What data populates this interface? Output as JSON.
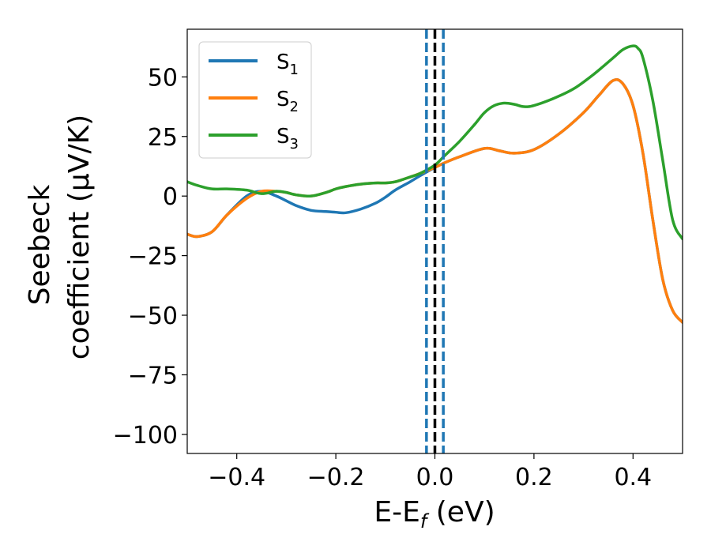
{
  "chart_data": {
    "type": "line",
    "title": "",
    "xlabel": {
      "main": "E-E",
      "sub": "f",
      "unit": " (eV)"
    },
    "ylabel": {
      "line1": "Seebeck",
      "line2": "coefficient  (μV/K)"
    },
    "xlim": [
      -0.5,
      0.5
    ],
    "ylim": [
      -108,
      70
    ],
    "x_ticks": [
      -0.4,
      -0.2,
      0.0,
      0.2,
      0.4
    ],
    "x_tick_labels": [
      "−0.4",
      "−0.2",
      "0.0",
      "0.2",
      "0.4"
    ],
    "y_ticks": [
      50,
      25,
      0,
      -25,
      -50,
      -75,
      -100
    ],
    "y_tick_labels": [
      "50",
      "25",
      "0",
      "−25",
      "−50",
      "−75",
      "−100"
    ],
    "grid": false,
    "legend_placement": "top-left",
    "vlines": [
      {
        "x": 0.0,
        "color": "#000000",
        "style": "dashed"
      },
      {
        "x": -0.017,
        "color": "#1f77b4",
        "style": "dashed"
      },
      {
        "x": 0.017,
        "color": "#1f77b4",
        "style": "dashed"
      }
    ],
    "series": [
      {
        "name": "S",
        "sub": "1",
        "color": "#1f77b4",
        "x": [
          -0.5,
          -0.48,
          -0.45,
          -0.42,
          -0.38,
          -0.35,
          -0.32,
          -0.3,
          -0.28,
          -0.25,
          -0.22,
          -0.2,
          -0.18,
          -0.15,
          -0.12,
          -0.1,
          -0.08,
          -0.05,
          -0.03,
          0.0,
          0.02,
          0.05,
          0.1,
          0.13,
          0.16,
          0.2,
          0.25,
          0.3,
          0.33,
          0.36,
          0.38,
          0.4,
          0.42,
          0.44,
          0.46,
          0.48,
          0.5
        ],
        "values": [
          -16,
          -17,
          -15,
          -8,
          0,
          2,
          0,
          -2,
          -4,
          -6,
          -6.5,
          -6.8,
          -7,
          -5.5,
          -3,
          -0.5,
          2.5,
          6,
          8.5,
          12,
          14,
          16.5,
          20,
          19,
          18,
          19.5,
          26,
          35,
          42,
          48.5,
          47,
          38,
          18,
          -10,
          -35,
          -48,
          -53
        ]
      },
      {
        "name": "S",
        "sub": "2",
        "color": "#ff7f0e",
        "x": [
          -0.5,
          -0.48,
          -0.45,
          -0.42,
          -0.38,
          -0.35,
          -0.32,
          -0.3,
          -0.28,
          -0.25,
          -0.22,
          -0.2,
          -0.18,
          -0.15,
          -0.12,
          -0.1,
          -0.08,
          -0.05,
          -0.03,
          0.0,
          0.02,
          0.05,
          0.1,
          0.13,
          0.16,
          0.2,
          0.25,
          0.3,
          0.33,
          0.36,
          0.38,
          0.4,
          0.42,
          0.44,
          0.46,
          0.48,
          0.5
        ],
        "values": [
          -16,
          -17,
          -15,
          -8,
          -1,
          2,
          2,
          1.5,
          0.5,
          0,
          1.5,
          3,
          4,
          5,
          5.5,
          5.5,
          6,
          8,
          9.5,
          12,
          14,
          16.5,
          20,
          19,
          18,
          19.5,
          26,
          35,
          42,
          48.5,
          47,
          38,
          18,
          -10,
          -35,
          -48,
          -53
        ]
      },
      {
        "name": "S",
        "sub": "3",
        "color": "#2ca02c",
        "x": [
          -0.5,
          -0.48,
          -0.45,
          -0.42,
          -0.38,
          -0.35,
          -0.32,
          -0.3,
          -0.28,
          -0.25,
          -0.22,
          -0.2,
          -0.18,
          -0.15,
          -0.12,
          -0.1,
          -0.08,
          -0.05,
          -0.03,
          0.0,
          0.02,
          0.05,
          0.08,
          0.1,
          0.12,
          0.14,
          0.16,
          0.18,
          0.2,
          0.24,
          0.28,
          0.32,
          0.36,
          0.38,
          0.4,
          0.41,
          0.42,
          0.44,
          0.46,
          0.48,
          0.5
        ],
        "values": [
          6,
          4.5,
          3,
          3,
          2.5,
          1,
          2,
          1.5,
          0.5,
          0,
          1.5,
          3,
          4,
          5,
          5.5,
          5.5,
          6,
          8,
          9.5,
          13,
          17,
          23,
          30,
          35,
          38,
          39,
          38.5,
          37.5,
          38,
          41,
          45,
          51,
          58,
          61.5,
          63,
          62,
          58,
          40,
          15,
          -10,
          -18
        ]
      }
    ]
  }
}
